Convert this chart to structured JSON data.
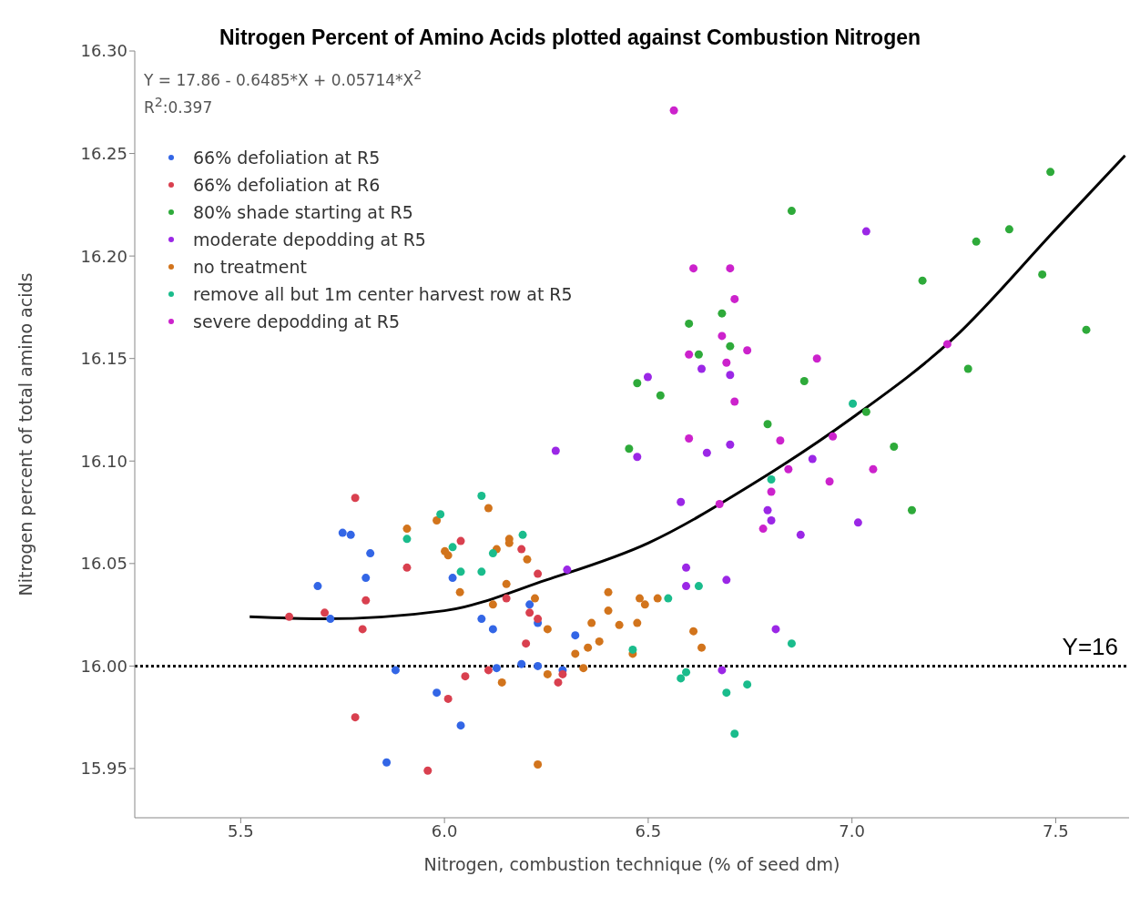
{
  "chart_data": {
    "type": "scatter",
    "title": "Nitrogen Percent of Amino Acids plotted against Combustion Nitrogen",
    "xlabel": "Nitrogen, combustion technique (% of seed dm)",
    "ylabel": "Nitrogen percent of total amino acids",
    "xlim": [
      5.24,
      7.68
    ],
    "xticks": [
      5.5,
      {
        "value": 6,
        "label": "6.0"
      },
      6.5,
      {
        "value": 7,
        "label": "7.0"
      },
      7.5
    ],
    "ylim": [
      15.926,
      16.3
    ],
    "yticks": [
      {
        "value": 15.95,
        "label": "15.95"
      },
      {
        "value": 16,
        "label": "16.00"
      },
      {
        "value": 16.05,
        "label": "16.05"
      },
      {
        "value": 16.1,
        "label": "16.10"
      },
      {
        "value": 16.15,
        "label": "16.15"
      },
      {
        "value": 16.2,
        "label": "16.20"
      },
      {
        "value": 16.25,
        "label": "16.25"
      },
      {
        "value": 16.3,
        "label": "16.30"
      }
    ],
    "grid": false,
    "legend": "top left",
    "marker": "circle",
    "annotations": [
      "Y = 17.86 - 0.6485*X + 0.05714*X$^{2}$",
      "R$^{2}$:0.397"
    ],
    "ref_lines": [
      {
        "axis": "y",
        "value": 16,
        "label": "Y=16",
        "color": "#000000",
        "line_style": "dotted"
      }
    ],
    "series": [
      {
        "name": "66% defoliation at R5",
        "color": "#3366e6",
        "x": [
          5.689,
          5.72,
          5.75,
          5.77,
          5.807,
          5.818,
          5.858,
          5.88,
          5.981,
          6.02,
          6.04,
          6.091,
          6.119,
          6.128,
          6.189,
          6.209,
          6.229,
          6.229,
          6.29,
          6.321
        ],
        "values": [
          16.039,
          16.023,
          16.065,
          16.064,
          16.043,
          16.055,
          15.953,
          15.998,
          15.987,
          16.043,
          15.971,
          16.023,
          16.018,
          15.999,
          16.001,
          16.03,
          16.021,
          16.0,
          15.998,
          16.015
        ]
      },
      {
        "name": "66% defoliation at R6",
        "color": "#d9404f",
        "x": [
          5.619,
          5.706,
          5.781,
          5.781,
          5.799,
          5.807,
          5.908,
          5.959,
          6.009,
          6.04,
          6.051,
          6.108,
          6.152,
          6.189,
          6.2,
          6.209,
          6.229,
          6.229,
          6.279,
          6.29
        ],
        "values": [
          16.024,
          16.026,
          16.082,
          15.975,
          16.018,
          16.032,
          16.048,
          15.949,
          15.984,
          16.061,
          15.995,
          15.998,
          16.033,
          16.057,
          16.011,
          16.026,
          16.045,
          16.023,
          15.992,
          15.996
        ]
      },
      {
        "name": "80% shade starting at R5",
        "color": "#2eaa3a",
        "x": [
          6.453,
          6.473,
          6.53,
          6.6,
          6.624,
          6.681,
          6.701,
          6.793,
          6.852,
          6.883,
          7.035,
          7.103,
          7.147,
          7.173,
          7.285,
          7.305,
          7.386,
          7.467,
          7.487,
          7.575
        ],
        "values": [
          16.106,
          16.138,
          16.132,
          16.167,
          16.152,
          16.172,
          16.156,
          16.118,
          16.222,
          16.139,
          16.124,
          16.107,
          16.076,
          16.188,
          16.145,
          16.207,
          16.213,
          16.191,
          16.241,
          16.164
        ]
      },
      {
        "name": "moderate depodding at R5",
        "color": "#9b27e6",
        "x": [
          6.273,
          6.301,
          6.473,
          6.499,
          6.58,
          6.593,
          6.593,
          6.631,
          6.644,
          6.681,
          6.692,
          6.701,
          6.701,
          6.793,
          6.802,
          6.813,
          6.874,
          6.903,
          7.015,
          7.035
        ],
        "values": [
          16.105,
          16.047,
          16.102,
          16.141,
          16.08,
          16.048,
          16.039,
          16.145,
          16.104,
          15.998,
          16.042,
          16.142,
          16.108,
          16.076,
          16.071,
          16.018,
          16.064,
          16.101,
          16.07,
          16.212
        ]
      },
      {
        "name": "no treatment",
        "color": "#d2741c",
        "x": [
          5.908,
          5.981,
          6.001,
          6.009,
          6.038,
          6.108,
          6.128,
          6.159,
          6.159,
          6.203,
          6.152,
          6.119,
          6.222,
          6.253,
          6.361,
          6.402,
          6.402,
          6.429,
          6.473,
          6.479,
          6.492,
          6.523,
          6.321,
          6.352,
          6.38,
          6.462,
          6.341,
          6.253,
          6.141,
          6.229,
          6.611,
          6.631
        ],
        "values": [
          16.067,
          16.071,
          16.056,
          16.054,
          16.036,
          16.077,
          16.057,
          16.062,
          16.06,
          16.052,
          16.04,
          16.03,
          16.033,
          16.018,
          16.021,
          16.036,
          16.027,
          16.02,
          16.021,
          16.033,
          16.03,
          16.033,
          16.006,
          16.009,
          16.012,
          16.006,
          15.999,
          15.996,
          15.992,
          15.952,
          16.017,
          16.009
        ]
      },
      {
        "name": "remove all but 1m center harvest row at R5",
        "color": "#1abc8c",
        "x": [
          5.908,
          5.99,
          6.02,
          6.04,
          6.091,
          6.091,
          6.119,
          6.192,
          6.462,
          6.549,
          6.58,
          6.593,
          6.624,
          6.692,
          6.712,
          6.743,
          6.802,
          6.852,
          7.002
        ],
        "values": [
          16.062,
          16.074,
          16.058,
          16.046,
          16.083,
          16.046,
          16.055,
          16.064,
          16.008,
          16.033,
          15.994,
          15.997,
          16.039,
          15.987,
          15.967,
          15.991,
          16.091,
          16.011,
          16.128
        ]
      },
      {
        "name": "severe depodding at R5",
        "color": "#cc22cc",
        "x": [
          6.563,
          6.6,
          6.6,
          6.611,
          6.675,
          6.681,
          6.692,
          6.701,
          6.712,
          6.712,
          6.743,
          6.782,
          6.802,
          6.824,
          6.844,
          6.914,
          6.945,
          6.953,
          7.052,
          7.234
        ],
        "values": [
          16.271,
          16.152,
          16.111,
          16.194,
          16.079,
          16.161,
          16.148,
          16.194,
          16.179,
          16.129,
          16.154,
          16.067,
          16.085,
          16.11,
          16.096,
          16.15,
          16.09,
          16.112,
          16.096,
          16.157
        ]
      },
      {
        "type": "line",
        "marker": "none",
        "color": "#000000",
        "x": [
          5.522,
          5.7,
          6.0,
          6.25,
          6.5,
          6.75,
          7.0,
          7.25,
          7.5,
          7.67
        ],
        "values": [
          16.024,
          16.023,
          16.027,
          16.042,
          16.06,
          16.088,
          16.121,
          16.16,
          16.213,
          16.249
        ]
      }
    ]
  }
}
